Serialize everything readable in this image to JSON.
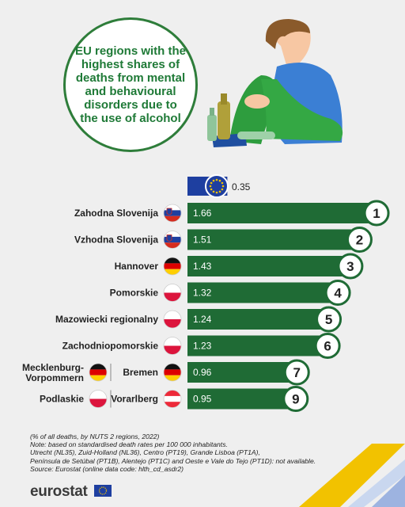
{
  "title": "EU regions with the highest shares of deaths from mental and behavioural disorders due to the use of alcohol",
  "chart_data": {
    "type": "bar",
    "eu_value": 0.35,
    "bars": [
      {
        "rank": 1,
        "labels": [
          "Zahodna Slovenija"
        ],
        "flags": [
          "si"
        ],
        "value": 1.66
      },
      {
        "rank": 2,
        "labels": [
          "Vzhodna Slovenija"
        ],
        "flags": [
          "si"
        ],
        "value": 1.51
      },
      {
        "rank": 3,
        "labels": [
          "Hannover"
        ],
        "flags": [
          "de"
        ],
        "value": 1.43
      },
      {
        "rank": 4,
        "labels": [
          "Pomorskie"
        ],
        "flags": [
          "pl"
        ],
        "value": 1.32
      },
      {
        "rank": 5,
        "labels": [
          "Mazowiecki regionalny"
        ],
        "flags": [
          "pl"
        ],
        "value": 1.24
      },
      {
        "rank": 6,
        "labels": [
          "Zachodniopomorskie"
        ],
        "flags": [
          "pl"
        ],
        "value": 1.23
      },
      {
        "rank": 7,
        "labels": [
          "Mecklenburg-Vorpommern",
          "Bremen"
        ],
        "flags": [
          "de",
          "de"
        ],
        "value": 0.96
      },
      {
        "rank": 9,
        "labels": [
          "Podlaskie",
          "Vorarlberg"
        ],
        "flags": [
          "pl",
          "at"
        ],
        "value": 0.95
      }
    ]
  },
  "notes": [
    "(% of all deaths, by NUTS 2 regions, 2022)",
    "Note: based on standardised death rates per 100 000 inhabitants.",
    "Utrecht (NL35), Zuid-Holland (NL36), Centro (PT19), Grande Lisboa (PT1A),",
    "Península de Setúbal (PT1B), Alentejo (PT1C) and Oeste e Vale do Tejo (PT1D): not available.",
    "Source: Eurostat (online data code: hlth_cd_asdr2)"
  ],
  "logo": "eurostat",
  "colors": {
    "bar": "#1f6b35",
    "eu": "#1e3fa0",
    "accent_yellow": "#f2c200"
  }
}
